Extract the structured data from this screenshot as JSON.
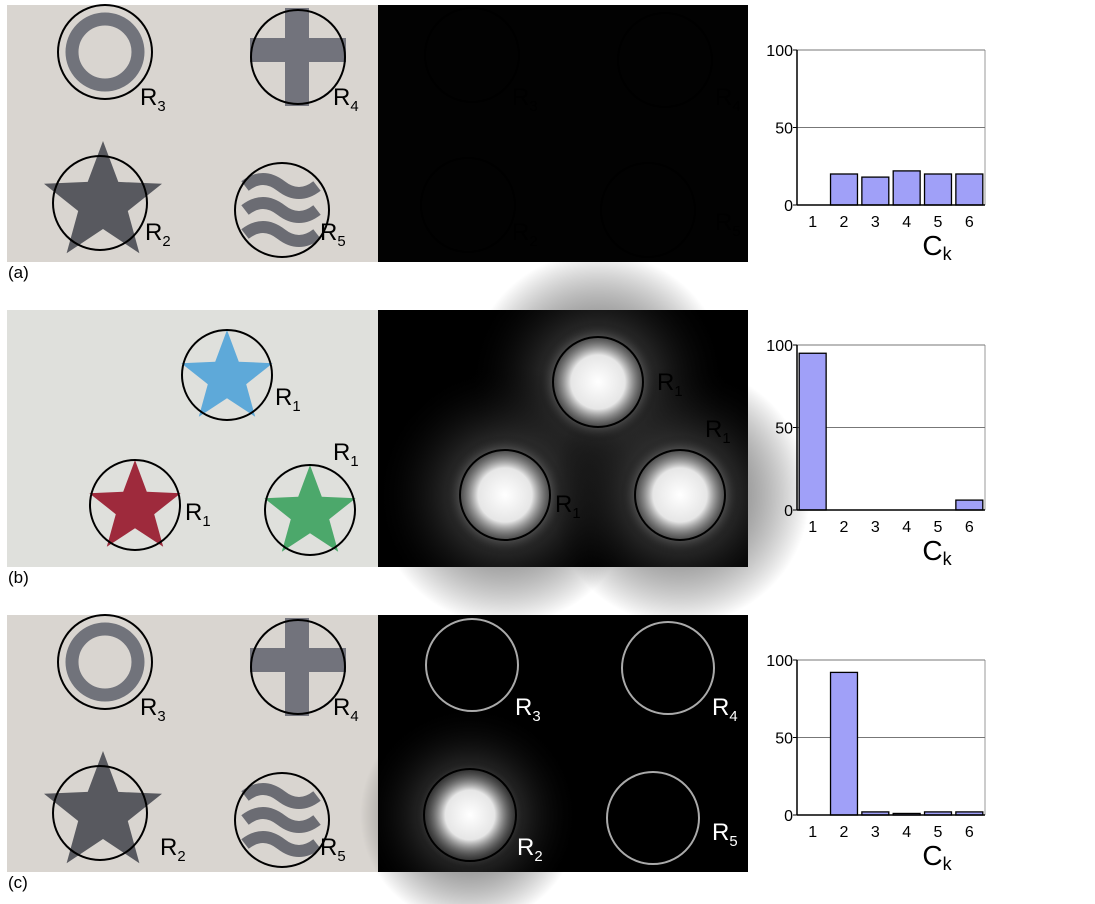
{
  "panels": [
    {
      "label": "(a)",
      "photo_regions": [
        {
          "letter": "R",
          "index": "3"
        },
        {
          "letter": "R",
          "index": "4"
        },
        {
          "letter": "R",
          "index": "2"
        },
        {
          "letter": "R",
          "index": "5"
        }
      ],
      "map_regions": [
        {
          "letter": "R",
          "index": "3"
        },
        {
          "letter": "R",
          "index": "4"
        },
        {
          "letter": "R",
          "index": "2"
        },
        {
          "letter": "R",
          "index": "5"
        }
      ]
    },
    {
      "label": "(b)",
      "photo_regions": [
        {
          "letter": "R",
          "index": "1"
        },
        {
          "letter": "R",
          "index": "1"
        },
        {
          "letter": "R",
          "index": "1"
        }
      ],
      "map_regions": [
        {
          "letter": "R",
          "index": "1"
        },
        {
          "letter": "R",
          "index": "1"
        },
        {
          "letter": "R",
          "index": "1"
        }
      ]
    },
    {
      "label": "(c)",
      "photo_regions": [
        {
          "letter": "R",
          "index": "3"
        },
        {
          "letter": "R",
          "index": "4"
        },
        {
          "letter": "R",
          "index": "2"
        },
        {
          "letter": "R",
          "index": "5"
        }
      ],
      "map_regions": [
        {
          "letter": "R",
          "index": "3"
        },
        {
          "letter": "R",
          "index": "4"
        },
        {
          "letter": "R",
          "index": "2"
        },
        {
          "letter": "R",
          "index": "5"
        }
      ]
    }
  ],
  "chart_data": [
    {
      "type": "bar",
      "categories": [
        "1",
        "2",
        "3",
        "4",
        "5",
        "6"
      ],
      "values": [
        0,
        20,
        18,
        22,
        20,
        20
      ],
      "color": "#a0a0f8",
      "ylim": [
        0,
        100
      ],
      "yticks": [
        0,
        50,
        100
      ],
      "grid": true,
      "x_label": "C",
      "x_label_subscript": "k"
    },
    {
      "type": "bar",
      "categories": [
        "1",
        "2",
        "3",
        "4",
        "5",
        "6"
      ],
      "values": [
        95,
        0,
        0,
        0,
        0,
        6
      ],
      "color": "#a0a0f8",
      "ylim": [
        0,
        100
      ],
      "yticks": [
        0,
        50,
        100
      ],
      "grid": true,
      "x_label": "C",
      "x_label_subscript": "k"
    },
    {
      "type": "bar",
      "categories": [
        "1",
        "2",
        "3",
        "4",
        "5",
        "6"
      ],
      "values": [
        0,
        92,
        2,
        1,
        2,
        2
      ],
      "color": "#a0a0f8",
      "ylim": [
        0,
        100
      ],
      "yticks": [
        0,
        50,
        100
      ],
      "grid": true,
      "x_label": "C",
      "x_label_subscript": "k"
    }
  ]
}
